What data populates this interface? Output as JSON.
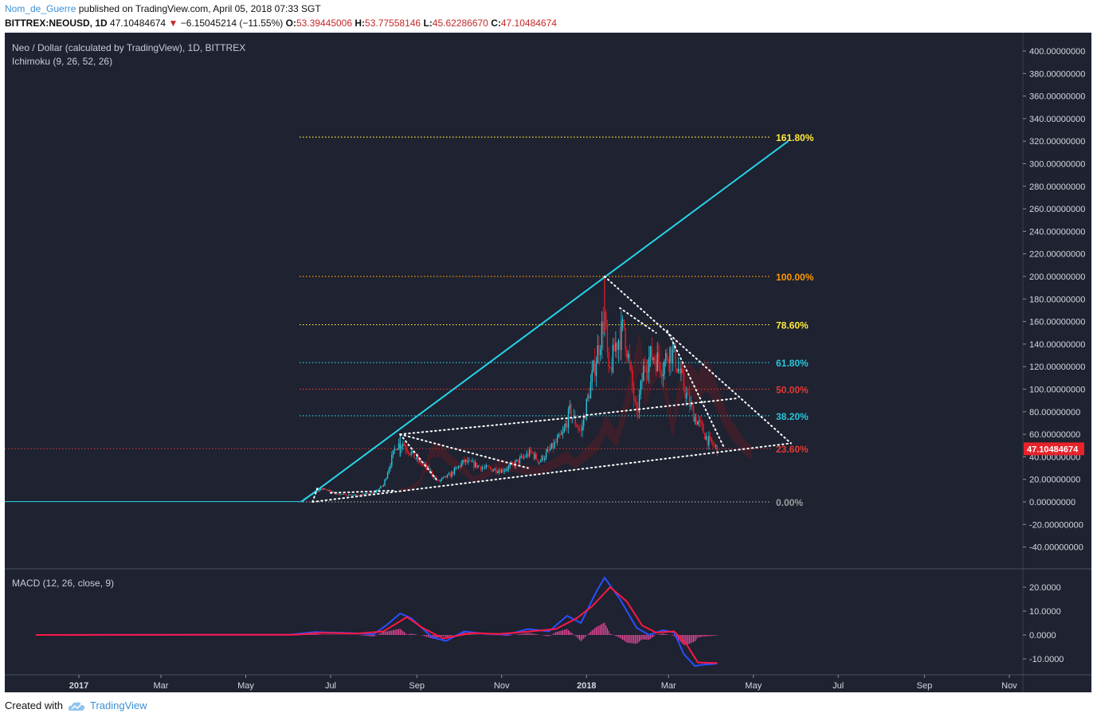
{
  "header": {
    "author": "Nom_de_Guerre",
    "published": " published on TradingView.com, April 05, 2018 07:33 SGT",
    "symbol": "BITTREX:NEOUSD, 1D",
    "price": "47.10484674",
    "change": "−6.15045214 (−11.55%)",
    "o_label": "O:",
    "o_value": "53.39445006",
    "h_label": "H:",
    "h_value": "53.77558146",
    "l_label": "L:",
    "l_value": "45.62286670",
    "c_label": "C:",
    "c_value": "47.10484674"
  },
  "legend": {
    "title": "Neo / Dollar (calculated by TradingView), 1D, BITTREX",
    "indicator": "Ichimoku (9, 26, 52, 26)",
    "macd": "MACD (12, 26, close, 9)"
  },
  "footer": {
    "created_with": "Created with",
    "brand": "TradingView"
  },
  "colors": {
    "background": "#1e2231",
    "up": "#26c6da",
    "down": "#ef1c25",
    "trendline": "#26d4e8",
    "fib_gold": "#ffeb3b",
    "fib_orange": "#ff9800",
    "fib_cyan": "#26c6da",
    "fib_red": "#e53935",
    "fib_gray": "#9e9e9e",
    "macd_line": "#2950ff",
    "signal_line": "#ff1744",
    "histogram": "#ff4da6"
  },
  "chart_data": [
    {
      "type": "candlestick",
      "title": "Neo / Dollar (calculated by TradingView), 1D, BITTREX",
      "x_ticks": [
        "2017",
        "Mar",
        "May",
        "Jul",
        "Sep",
        "Nov",
        "2018",
        "Mar",
        "May",
        "Jul",
        "Sep",
        "Nov"
      ],
      "y_ticks": [
        "400.00000000",
        "380.00000000",
        "360.00000000",
        "340.00000000",
        "320.00000000",
        "300.00000000",
        "280.00000000",
        "260.00000000",
        "240.00000000",
        "220.00000000",
        "200.00000000",
        "180.00000000",
        "160.00000000",
        "140.00000000",
        "120.00000000",
        "100.00000000",
        "80.00000000",
        "60.00000000",
        "40.00000000",
        "20.00000000",
        "0.00000000",
        "-20.00000000",
        "-40.00000000"
      ],
      "ylim": [
        -50,
        405
      ],
      "last_price": "47.10484674",
      "price_path": [
        [
          "2016-12-01",
          0.2
        ],
        [
          "2017-05-15",
          0.4
        ],
        [
          "2017-06-01",
          0.5
        ],
        [
          "2017-06-10",
          1
        ],
        [
          "2017-06-20",
          9
        ],
        [
          "2017-06-26",
          12
        ],
        [
          "2017-07-05",
          7
        ],
        [
          "2017-07-20",
          6
        ],
        [
          "2017-08-01",
          8
        ],
        [
          "2017-08-08",
          15
        ],
        [
          "2017-08-13",
          35
        ],
        [
          "2017-08-17",
          50
        ],
        [
          "2017-08-22",
          52
        ],
        [
          "2017-08-30",
          40
        ],
        [
          "2017-09-10",
          28
        ],
        [
          "2017-09-16",
          18
        ],
        [
          "2017-09-25",
          24
        ],
        [
          "2017-10-05",
          36
        ],
        [
          "2017-10-20",
          30
        ],
        [
          "2017-11-01",
          28
        ],
        [
          "2017-11-08",
          32
        ],
        [
          "2017-11-15",
          38
        ],
        [
          "2017-11-22",
          44
        ],
        [
          "2017-11-28",
          36
        ],
        [
          "2017-12-05",
          45
        ],
        [
          "2017-12-15",
          60
        ],
        [
          "2017-12-20",
          80
        ],
        [
          "2017-12-28",
          62
        ],
        [
          "2018-01-05",
          110
        ],
        [
          "2018-01-10",
          140
        ],
        [
          "2018-01-14",
          165
        ],
        [
          "2018-01-17",
          110
        ],
        [
          "2018-01-22",
          140
        ],
        [
          "2018-01-28",
          155
        ],
        [
          "2018-02-02",
          110
        ],
        [
          "2018-02-06",
          75
        ],
        [
          "2018-02-12",
          125
        ],
        [
          "2018-02-18",
          130
        ],
        [
          "2018-02-25",
          120
        ],
        [
          "2018-03-01",
          135
        ],
        [
          "2018-03-05",
          130
        ],
        [
          "2018-03-10",
          110
        ],
        [
          "2018-03-15",
          90
        ],
        [
          "2018-03-20",
          75
        ],
        [
          "2018-03-25",
          65
        ],
        [
          "2018-03-29",
          55
        ],
        [
          "2018-04-05",
          47.1
        ]
      ],
      "drawings": {
        "trendline": {
          "from": [
            "2017-06-10",
            0
          ],
          "to": [
            "2018-05-26",
            320
          ]
        },
        "fibonacci": [
          {
            "level": "161.80%",
            "value": 323.6
          },
          {
            "level": "100.00%",
            "value": 200
          },
          {
            "level": "78.60%",
            "value": 157.2
          },
          {
            "level": "61.80%",
            "value": 123.6
          },
          {
            "level": "50.00%",
            "value": 100
          },
          {
            "level": "38.20%",
            "value": 76.4
          },
          {
            "level": "23.60%",
            "value": 47.2
          },
          {
            "level": "0.00%",
            "value": 0
          }
        ]
      }
    },
    {
      "type": "macd",
      "title": "MACD (12, 26, close, 9)",
      "y_ticks": [
        "20.0000",
        "10.0000",
        "0.0000",
        "-10.0000"
      ],
      "ylim": [
        -15,
        25
      ],
      "macd_path": [
        [
          "2016-12-01",
          0
        ],
        [
          "2017-06-01",
          0.1
        ],
        [
          "2017-06-20",
          1.2
        ],
        [
          "2017-07-15",
          0.8
        ],
        [
          "2017-08-01",
          0.3
        ],
        [
          "2017-08-10",
          4
        ],
        [
          "2017-08-20",
          9
        ],
        [
          "2017-08-28",
          7
        ],
        [
          "2017-09-12",
          -1
        ],
        [
          "2017-09-22",
          -2.5
        ],
        [
          "2017-10-05",
          1.5
        ],
        [
          "2017-10-20",
          0.5
        ],
        [
          "2017-11-05",
          0.2
        ],
        [
          "2017-11-20",
          2.5
        ],
        [
          "2017-12-05",
          1.5
        ],
        [
          "2017-12-18",
          8
        ],
        [
          "2017-12-28",
          5
        ],
        [
          "2018-01-08",
          18
        ],
        [
          "2018-01-14",
          24
        ],
        [
          "2018-01-25",
          15
        ],
        [
          "2018-02-06",
          3
        ],
        [
          "2018-02-15",
          0
        ],
        [
          "2018-02-25",
          2
        ],
        [
          "2018-03-05",
          1
        ],
        [
          "2018-03-12",
          -8
        ],
        [
          "2018-03-20",
          -13
        ],
        [
          "2018-03-25",
          -12.5
        ],
        [
          "2018-04-05",
          -12
        ]
      ],
      "signal_path": [
        [
          "2016-12-01",
          0
        ],
        [
          "2017-06-05",
          0.1
        ],
        [
          "2017-06-25",
          0.9
        ],
        [
          "2017-07-20",
          0.6
        ],
        [
          "2017-08-08",
          1.5
        ],
        [
          "2017-08-25",
          7.5
        ],
        [
          "2017-09-05",
          3
        ],
        [
          "2017-09-20",
          -1.5
        ],
        [
          "2017-10-10",
          0.8
        ],
        [
          "2017-10-30",
          0.4
        ],
        [
          "2017-11-22",
          1.5
        ],
        [
          "2017-12-10",
          2.5
        ],
        [
          "2017-12-25",
          7
        ],
        [
          "2018-01-05",
          12
        ],
        [
          "2018-01-18",
          20
        ],
        [
          "2018-01-30",
          14
        ],
        [
          "2018-02-10",
          4
        ],
        [
          "2018-02-20",
          1
        ],
        [
          "2018-03-05",
          1.5
        ],
        [
          "2018-03-14",
          -4
        ],
        [
          "2018-03-22",
          -11.5
        ],
        [
          "2018-04-05",
          -11.8
        ]
      ]
    }
  ]
}
